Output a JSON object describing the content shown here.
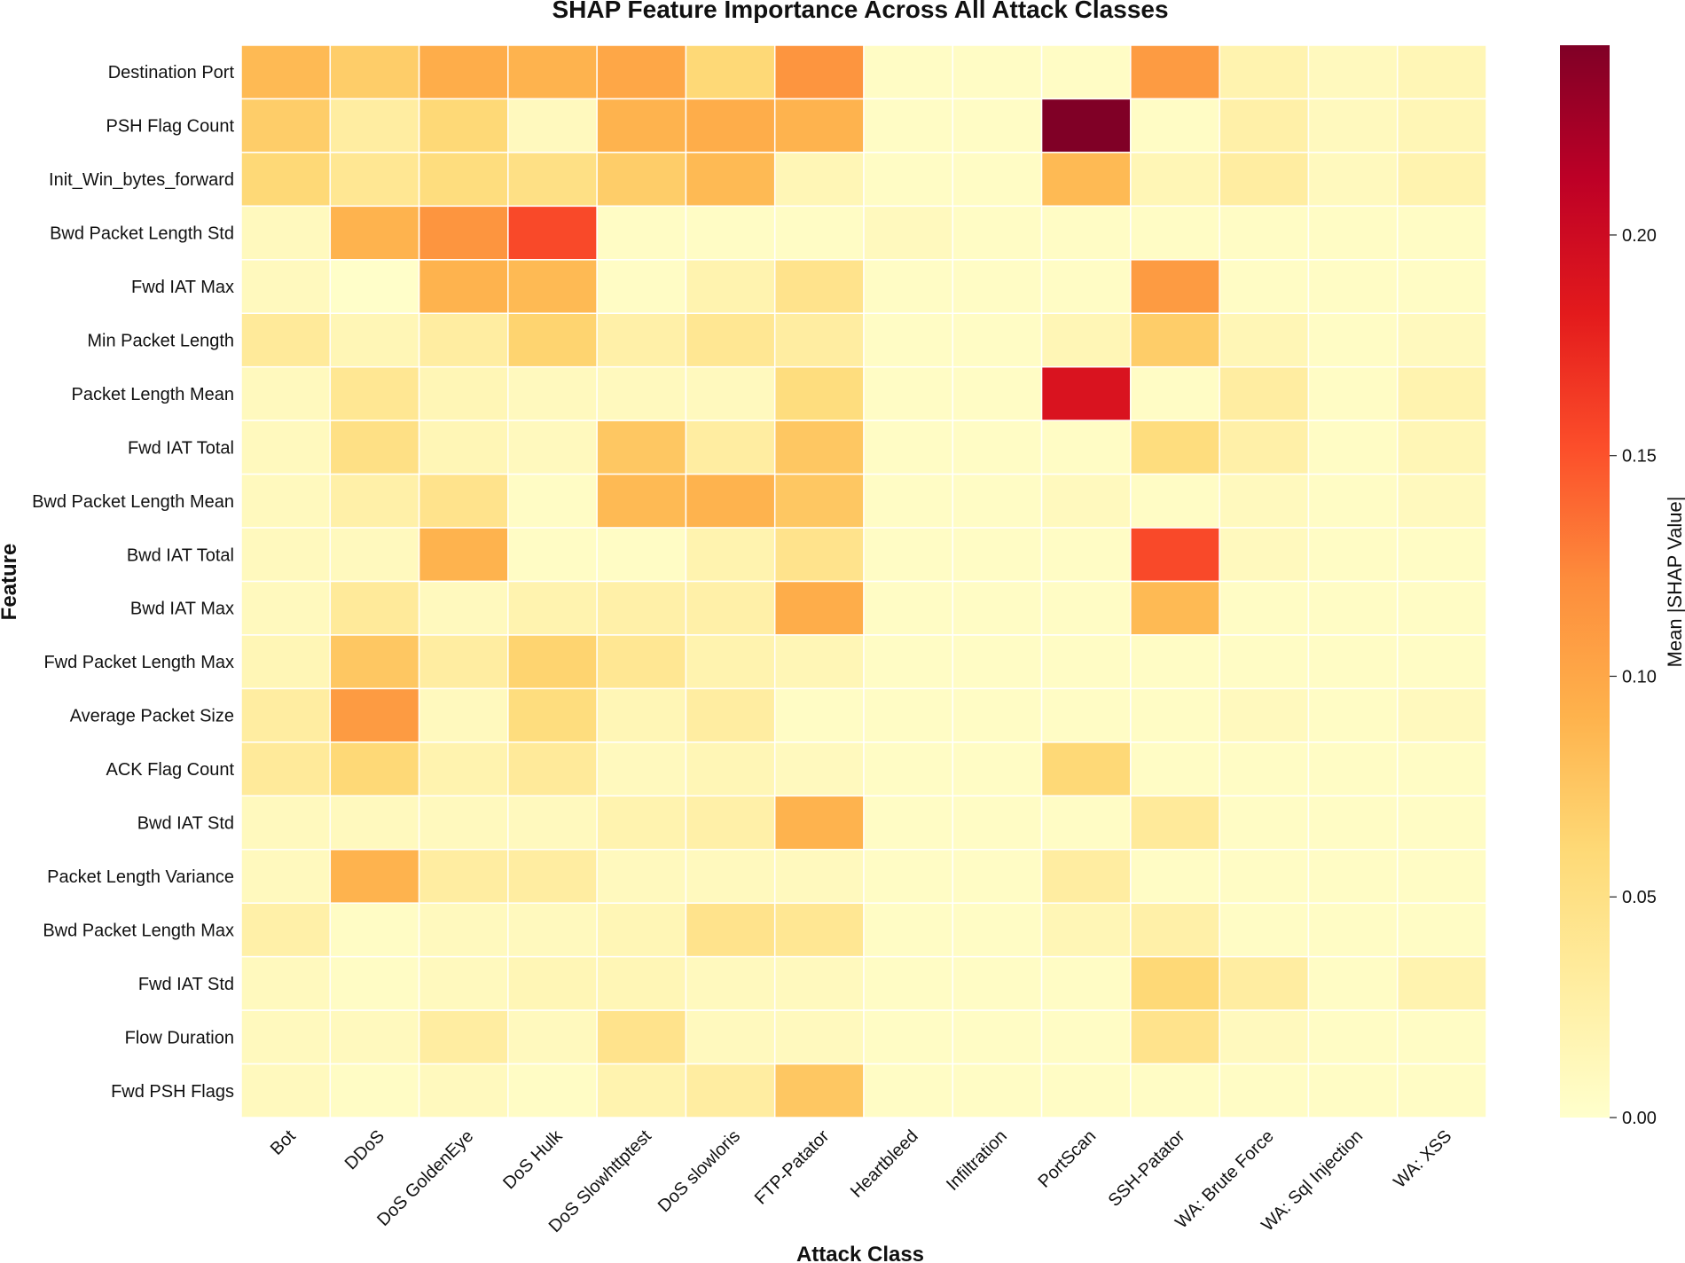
{
  "chart_data": {
    "type": "heatmap",
    "title": "SHAP Feature Importance Across All Attack Classes",
    "xlabel": "Attack Class",
    "ylabel": "Feature",
    "colorbar_label": "Mean |SHAP Value|",
    "colormap": "YlOrRd",
    "vmin": 0.0,
    "vmax": 0.243,
    "colorbar_ticks": [
      "0.00",
      "0.05",
      "0.10",
      "0.15",
      "0.20"
    ],
    "colorbar_tick_values": [
      0.0,
      0.05,
      0.1,
      0.15,
      0.2
    ],
    "x_categories": [
      "Bot",
      "DDoS",
      "DoS GoldenEye",
      "DoS Hulk",
      "DoS Slowhttptest",
      "DoS slowloris",
      "FTP-Patator",
      "Heartbleed",
      "Infiltration",
      "PortScan",
      "SSH-Patator",
      "WA:  Brute Force",
      "WA:  Sql Injection",
      "WA:  XSS"
    ],
    "y_categories": [
      "Destination Port",
      "PSH Flag Count",
      "Init_Win_bytes_forward",
      "Bwd Packet Length Std",
      "Fwd IAT Max",
      "Min Packet Length",
      "Packet Length Mean",
      "Fwd IAT Total",
      "Bwd Packet Length Mean",
      "Bwd IAT Total",
      "Bwd IAT Max",
      "Fwd Packet Length Max",
      "Average Packet Size",
      "ACK Flag Count",
      "Bwd IAT Std",
      "Packet Length Variance",
      "Bwd Packet Length Max",
      "Fwd IAT Std",
      "Flow Duration",
      "Fwd PSH Flags"
    ],
    "values": [
      [
        0.085,
        0.07,
        0.095,
        0.09,
        0.1,
        0.06,
        0.115,
        0.005,
        0.005,
        0.005,
        0.11,
        0.02,
        0.01,
        0.015
      ],
      [
        0.07,
        0.03,
        0.06,
        0.01,
        0.09,
        0.095,
        0.09,
        0.005,
        0.005,
        0.243,
        0.005,
        0.025,
        0.01,
        0.015
      ],
      [
        0.06,
        0.04,
        0.055,
        0.05,
        0.07,
        0.085,
        0.015,
        0.005,
        0.005,
        0.085,
        0.015,
        0.03,
        0.01,
        0.02
      ],
      [
        0.01,
        0.09,
        0.115,
        0.155,
        0.005,
        0.005,
        0.005,
        0.01,
        0.005,
        0.005,
        0.005,
        0.005,
        0.005,
        0.005
      ],
      [
        0.01,
        0.002,
        0.09,
        0.085,
        0.005,
        0.02,
        0.045,
        0.005,
        0.005,
        0.005,
        0.11,
        0.005,
        0.005,
        0.005
      ],
      [
        0.035,
        0.015,
        0.03,
        0.065,
        0.025,
        0.04,
        0.03,
        0.005,
        0.005,
        0.015,
        0.07,
        0.015,
        0.005,
        0.01
      ],
      [
        0.01,
        0.04,
        0.015,
        0.01,
        0.01,
        0.01,
        0.055,
        0.005,
        0.005,
        0.19,
        0.005,
        0.03,
        0.005,
        0.02
      ],
      [
        0.01,
        0.05,
        0.015,
        0.01,
        0.075,
        0.03,
        0.075,
        0.005,
        0.005,
        0.005,
        0.055,
        0.025,
        0.005,
        0.015
      ],
      [
        0.01,
        0.025,
        0.045,
        0.005,
        0.085,
        0.09,
        0.075,
        0.005,
        0.005,
        0.01,
        0.005,
        0.01,
        0.005,
        0.01
      ],
      [
        0.01,
        0.01,
        0.09,
        0.005,
        0.005,
        0.02,
        0.045,
        0.005,
        0.005,
        0.005,
        0.155,
        0.01,
        0.005,
        0.005
      ],
      [
        0.01,
        0.035,
        0.01,
        0.02,
        0.025,
        0.025,
        0.095,
        0.005,
        0.005,
        0.005,
        0.085,
        0.005,
        0.005,
        0.005
      ],
      [
        0.015,
        0.075,
        0.03,
        0.065,
        0.04,
        0.02,
        0.015,
        0.005,
        0.005,
        0.005,
        0.005,
        0.005,
        0.005,
        0.005
      ],
      [
        0.03,
        0.11,
        0.01,
        0.055,
        0.015,
        0.03,
        0.005,
        0.005,
        0.005,
        0.005,
        0.005,
        0.01,
        0.005,
        0.01
      ],
      [
        0.035,
        0.06,
        0.02,
        0.035,
        0.01,
        0.015,
        0.01,
        0.005,
        0.005,
        0.06,
        0.005,
        0.005,
        0.005,
        0.005
      ],
      [
        0.01,
        0.01,
        0.01,
        0.01,
        0.02,
        0.025,
        0.09,
        0.005,
        0.005,
        0.005,
        0.035,
        0.005,
        0.005,
        0.005
      ],
      [
        0.01,
        0.09,
        0.03,
        0.03,
        0.01,
        0.01,
        0.01,
        0.005,
        0.005,
        0.03,
        0.005,
        0.005,
        0.005,
        0.005
      ],
      [
        0.025,
        0.005,
        0.01,
        0.01,
        0.015,
        0.045,
        0.04,
        0.005,
        0.005,
        0.015,
        0.025,
        0.005,
        0.005,
        0.005
      ],
      [
        0.01,
        0.005,
        0.01,
        0.015,
        0.015,
        0.01,
        0.01,
        0.005,
        0.005,
        0.005,
        0.06,
        0.03,
        0.005,
        0.02
      ],
      [
        0.01,
        0.01,
        0.03,
        0.01,
        0.045,
        0.01,
        0.01,
        0.005,
        0.005,
        0.005,
        0.045,
        0.01,
        0.005,
        0.005
      ],
      [
        0.01,
        0.005,
        0.01,
        0.005,
        0.02,
        0.03,
        0.075,
        0.005,
        0.005,
        0.005,
        0.005,
        0.005,
        0.005,
        0.005
      ]
    ]
  }
}
